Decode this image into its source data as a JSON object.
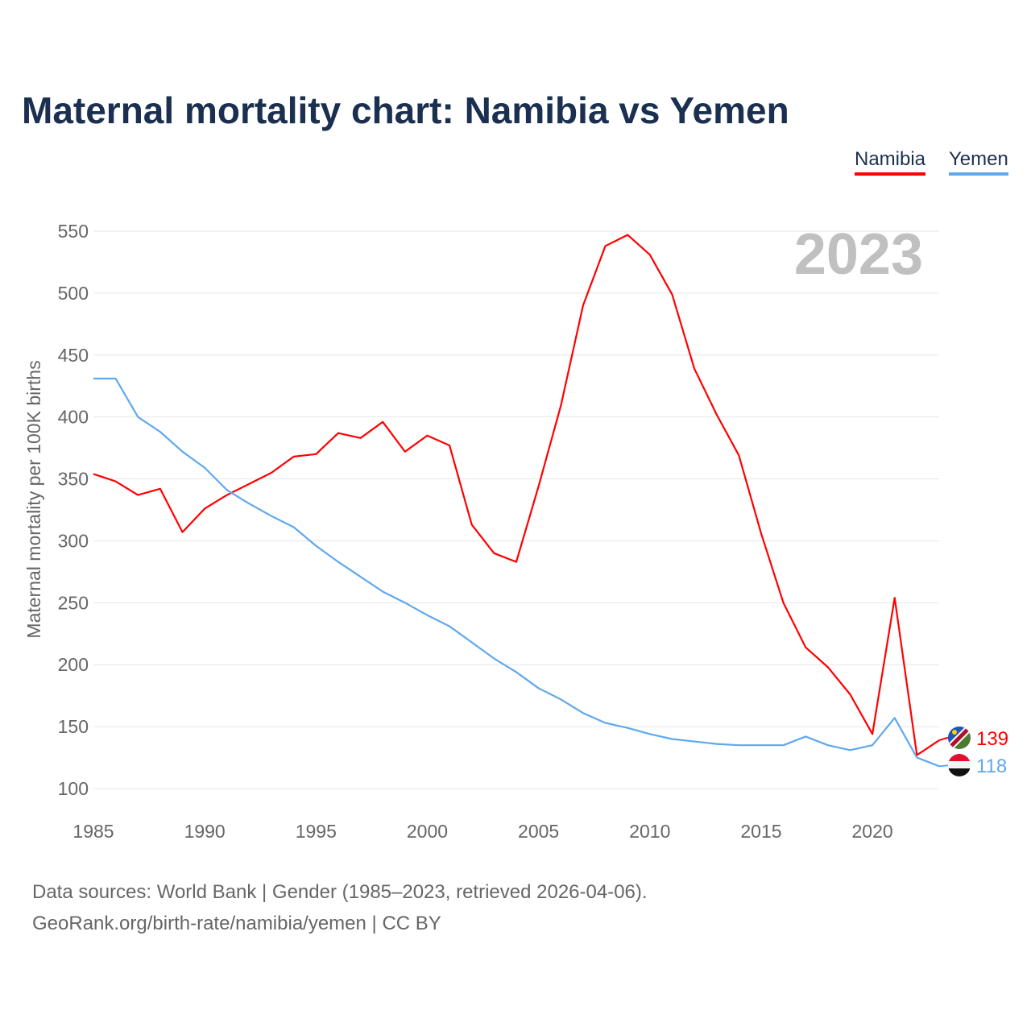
{
  "chart_data": {
    "type": "line",
    "title": "Maternal mortality chart: Namibia vs Yemen",
    "ylabel": "Maternal mortality per 100K births",
    "xlabel": "",
    "ylim": [
      100,
      550
    ],
    "xlim": [
      1985,
      2023
    ],
    "yticks": [
      100,
      150,
      200,
      250,
      300,
      350,
      400,
      450,
      500,
      550
    ],
    "xticks": [
      1985,
      1990,
      1995,
      2000,
      2005,
      2010,
      2015,
      2020
    ],
    "year_label": "2023",
    "grid": true,
    "legend_position": "top-right",
    "x": [
      1985,
      1986,
      1987,
      1988,
      1989,
      1990,
      1991,
      1992,
      1993,
      1994,
      1995,
      1996,
      1997,
      1998,
      1999,
      2000,
      2001,
      2002,
      2003,
      2004,
      2005,
      2006,
      2007,
      2008,
      2009,
      2010,
      2011,
      2012,
      2013,
      2014,
      2015,
      2016,
      2017,
      2018,
      2019,
      2020,
      2021,
      2022,
      2023
    ],
    "series": [
      {
        "name": "Namibia",
        "color": "#ff0000",
        "end_label": "139",
        "values": [
          354,
          348,
          337,
          342,
          307,
          326,
          337,
          346,
          355,
          368,
          370,
          387,
          383,
          396,
          372,
          385,
          377,
          313,
          290,
          283,
          344,
          409,
          490,
          538,
          547,
          531,
          499,
          439,
          402,
          369,
          306,
          250,
          214,
          198,
          176,
          144,
          254,
          127,
          139
        ]
      },
      {
        "name": "Yemen",
        "color": "#5fa8ef",
        "end_label": "118",
        "values": [
          431,
          431,
          400,
          388,
          372,
          359,
          341,
          330,
          320,
          311,
          296,
          283,
          271,
          259,
          250,
          240,
          231,
          218,
          205,
          194,
          181,
          172,
          161,
          153,
          149,
          144,
          140,
          138,
          136,
          135,
          135,
          135,
          142,
          135,
          131,
          135,
          157,
          125,
          118
        ]
      }
    ]
  },
  "footer": {
    "line1": "Data sources: World Bank | Gender (1985–2023, retrieved 2026-04-06).",
    "line2": "GeoRank.org/birth-rate/namibia/yemen | CC BY"
  }
}
